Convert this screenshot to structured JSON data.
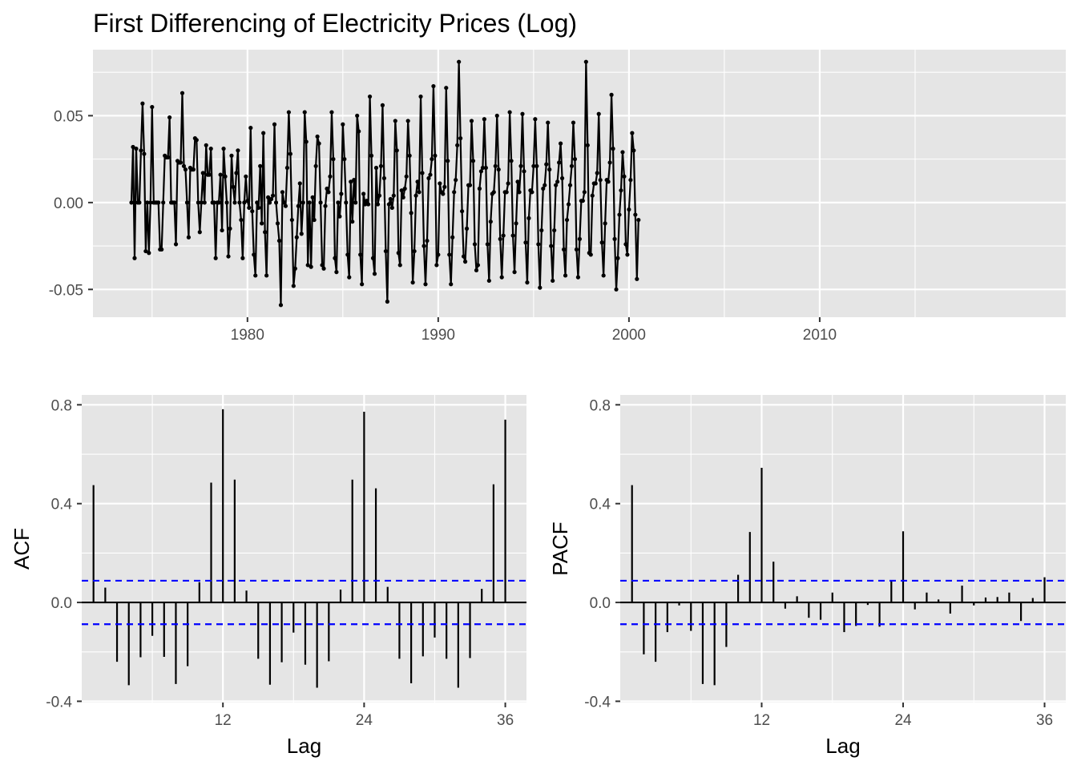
{
  "chart_data": [
    {
      "type": "line",
      "title": "First Differencing of Electricity Prices (Log)",
      "xlabel": "",
      "ylabel": "",
      "x_start": 1973.917,
      "x_step": 0.0833333,
      "xlim": [
        1971.9,
        2022.9
      ],
      "ylim": [
        -0.066,
        0.088
      ],
      "x_ticks": [
        1980,
        1990,
        2000,
        2010
      ],
      "x_tick_labels": [
        "1980",
        "1990",
        "2000",
        "2010"
      ],
      "y_ticks": [
        -0.05,
        0.0,
        0.05
      ],
      "y_tick_labels": [
        "-0.05",
        "0.00",
        "0.05"
      ],
      "grid": true,
      "values": [
        0.0,
        0.032,
        -0.032,
        0.031,
        0.0,
        0.0,
        0.03,
        0.057,
        0.028,
        -0.028,
        0.0,
        -0.029,
        0.0,
        0.055,
        0.0,
        0.0,
        0.0,
        0.0,
        -0.027,
        -0.027,
        0.0,
        0.027,
        0.026,
        0.026,
        0.049,
        0.0,
        0.0,
        0.0,
        -0.024,
        0.024,
        0.023,
        0.023,
        0.063,
        0.021,
        0.019,
        0.0,
        -0.02,
        0.02,
        0.019,
        0.019,
        0.037,
        0.036,
        0.0,
        -0.017,
        0.0,
        0.017,
        0.0,
        0.033,
        0.016,
        0.016,
        0.031,
        0.0,
        0.0,
        -0.032,
        0.0,
        0.0,
        0.016,
        -0.016,
        0.031,
        0.015,
        0.0,
        -0.031,
        -0.015,
        0.027,
        0.009,
        0.0,
        0.017,
        0.03,
        0.0,
        -0.01,
        -0.032,
        0.0,
        0.015,
        0.001,
        -0.003,
        0.043,
        -0.005,
        -0.03,
        -0.042,
        0.0,
        -0.003,
        0.021,
        -0.012,
        0.04,
        -0.017,
        -0.042,
        0.003,
        0.0,
        0.002,
        0.004,
        0.045,
        0.0,
        -0.012,
        -0.022,
        -0.059,
        0.006,
        0.0,
        -0.002,
        0.02,
        0.052,
        0.028,
        -0.01,
        -0.048,
        -0.038,
        -0.02,
        -0.002,
        0.011,
        -0.018,
        0.0,
        0.052,
        0.035,
        -0.036,
        0.0,
        -0.037,
        0.003,
        -0.01,
        0.021,
        0.038,
        0.034,
        0.0,
        -0.036,
        -0.038,
        -0.002,
        0.008,
        0.006,
        0.015,
        0.052,
        0.025,
        -0.032,
        -0.04,
        0.0,
        -0.008,
        0.005,
        0.045,
        0.025,
        0.0,
        -0.03,
        -0.043,
        0.012,
        -0.011,
        0.013,
        0.0,
        0.05,
        0.041,
        -0.03,
        -0.047,
        0.005,
        -0.001,
        0.001,
        -0.001,
        0.061,
        0.027,
        -0.032,
        -0.041,
        0.02,
        -0.001,
        0.004,
        0.021,
        0.056,
        0.014,
        -0.028,
        -0.057,
        -0.001,
        0.002,
        -0.003,
        0.004,
        0.047,
        0.03,
        -0.029,
        -0.036,
        0.007,
        0.003,
        0.008,
        0.015,
        0.047,
        0.027,
        -0.006,
        -0.046,
        -0.028,
        0.004,
        0.012,
        0.006,
        0.061,
        0.017,
        -0.025,
        -0.047,
        -0.022,
        0.014,
        0.016,
        0.025,
        0.067,
        0.027,
        -0.036,
        -0.03,
        0.011,
        0.006,
        0.005,
        0.009,
        0.066,
        0.024,
        -0.03,
        -0.047,
        -0.02,
        0.006,
        0.013,
        0.033,
        0.081,
        0.037,
        -0.005,
        -0.031,
        -0.034,
        -0.015,
        0.01,
        0.01,
        0.047,
        0.024,
        -0.024,
        -0.039,
        -0.036,
        0.008,
        0.018,
        0.02,
        0.048,
        0.02,
        -0.024,
        -0.045,
        -0.011,
        0.005,
        0.006,
        0.021,
        0.05,
        0.019,
        -0.021,
        -0.043,
        -0.019,
        0.006,
        0.006,
        0.011,
        0.052,
        0.024,
        -0.019,
        -0.04,
        -0.012,
        0.012,
        0.006,
        0.021,
        0.051,
        0.018,
        -0.023,
        -0.046,
        -0.009,
        0.007,
        0.006,
        0.021,
        0.048,
        0.021,
        -0.024,
        -0.049,
        -0.016,
        0.008,
        0.01,
        0.022,
        0.046,
        0.019,
        -0.025,
        -0.045,
        -0.016,
        0.01,
        0.012,
        0.023,
        0.034,
        0.014,
        -0.027,
        -0.042,
        -0.01,
        -0.001,
        0.01,
        0.021,
        0.046,
        0.025,
        -0.027,
        -0.043,
        -0.021,
        0.001,
        0.001,
        0.006,
        0.081,
        0.033,
        -0.029,
        -0.03,
        0.004,
        0.011,
        0.011,
        0.017,
        0.051,
        0.013,
        -0.023,
        -0.042,
        -0.012,
        0.013,
        0.012,
        0.023,
        0.062,
        0.031,
        -0.021,
        -0.05,
        -0.032,
        -0.007,
        0.007,
        0.029,
        0.015,
        -0.024,
        -0.03,
        -0.004,
        0.013,
        0.04,
        0.03,
        -0.007,
        -0.044,
        -0.01
      ]
    },
    {
      "type": "bar",
      "xlabel": "Lag",
      "ylabel": "ACF",
      "lags": [
        1,
        2,
        3,
        4,
        5,
        6,
        7,
        8,
        9,
        10,
        11,
        12,
        13,
        14,
        15,
        16,
        17,
        18,
        19,
        20,
        21,
        22,
        23,
        24,
        25,
        26,
        27,
        28,
        29,
        30,
        31,
        32,
        33,
        34,
        35,
        36
      ],
      "values": [
        0.475,
        0.06,
        -0.24,
        -0.335,
        -0.222,
        -0.135,
        -0.22,
        -0.33,
        -0.258,
        0.082,
        0.485,
        0.782,
        0.497,
        0.048,
        -0.228,
        -0.333,
        -0.242,
        -0.122,
        -0.252,
        -0.345,
        -0.238,
        0.052,
        0.497,
        0.772,
        0.462,
        0.063,
        -0.228,
        -0.327,
        -0.218,
        -0.142,
        -0.228,
        -0.345,
        -0.225,
        0.055,
        0.478,
        0.74
      ],
      "ci": 0.088,
      "xlim": [
        0,
        37.8
      ],
      "ylim": [
        -0.405,
        0.84
      ],
      "x_ticks": [
        12,
        24,
        36
      ],
      "x_tick_labels": [
        "12",
        "24",
        "36"
      ],
      "y_ticks": [
        -0.4,
        0.0,
        0.4,
        0.8
      ],
      "y_tick_labels": [
        "-0.4",
        "0.0",
        "0.4",
        "0.8"
      ],
      "grid": true
    },
    {
      "type": "bar",
      "xlabel": "Lag",
      "ylabel": "PACF",
      "lags": [
        1,
        2,
        3,
        4,
        5,
        6,
        7,
        8,
        9,
        10,
        11,
        12,
        13,
        14,
        15,
        16,
        17,
        18,
        19,
        20,
        21,
        22,
        23,
        24,
        25,
        26,
        27,
        28,
        29,
        30,
        31,
        32,
        33,
        34,
        35,
        36
      ],
      "values": [
        0.475,
        -0.21,
        -0.24,
        -0.12,
        -0.012,
        -0.115,
        -0.33,
        -0.335,
        -0.18,
        0.112,
        0.285,
        0.545,
        0.165,
        -0.025,
        0.025,
        -0.062,
        -0.07,
        0.04,
        -0.12,
        -0.095,
        -0.01,
        -0.098,
        0.085,
        0.288,
        -0.028,
        0.04,
        0.012,
        -0.045,
        0.068,
        -0.012,
        0.02,
        0.022,
        0.04,
        -0.075,
        0.018,
        0.102
      ],
      "ci": 0.088,
      "xlim": [
        0,
        37.8
      ],
      "ylim": [
        -0.405,
        0.84
      ],
      "x_ticks": [
        12,
        24,
        36
      ],
      "x_tick_labels": [
        "12",
        "24",
        "36"
      ],
      "y_ticks": [
        -0.4,
        0.0,
        0.4,
        0.8
      ],
      "y_tick_labels": [
        "-0.4",
        "0.0",
        "0.4",
        "0.8"
      ],
      "grid": true
    }
  ],
  "colors": {
    "panel_background": "#e5e5e5",
    "grid": "#ffffff",
    "series": "#000000",
    "confidence_band": "#0000ff",
    "tick_label": "#4d4d4d"
  }
}
